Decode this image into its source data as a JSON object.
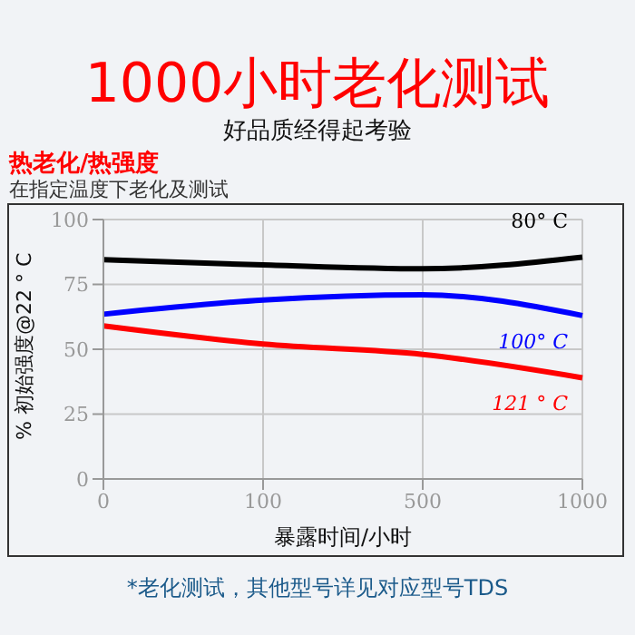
{
  "chart_data": {
    "type": "line",
    "title": "1000小时老化测试",
    "subtitle": "好品质经得起考验",
    "xlabel": "暴露时间/小时",
    "ylabel": "% 初始强度@22 ° C",
    "annotations": [
      "热老化/热强度",
      "在指定温度下老化及测试",
      "*老化测试，其他型号详见对应型号TDS"
    ],
    "categories": [
      "0",
      "100",
      "500",
      "1000"
    ],
    "series": [
      {
        "name": "80° C",
        "color": "#000000",
        "values": [
          84.5,
          82.5,
          81,
          85.5
        ]
      },
      {
        "name": "100° C",
        "color": "#0000ff",
        "values": [
          63.5,
          69,
          71,
          63
        ]
      },
      {
        "name": "121 ° C",
        "color": "#ff0000",
        "values": [
          59,
          52,
          48,
          39
        ]
      }
    ],
    "ylim": [
      0,
      100
    ],
    "yticks": [
      0,
      25,
      50,
      75,
      100
    ],
    "grid": true,
    "legend": false,
    "marker": "none",
    "line_style": "solid"
  }
}
